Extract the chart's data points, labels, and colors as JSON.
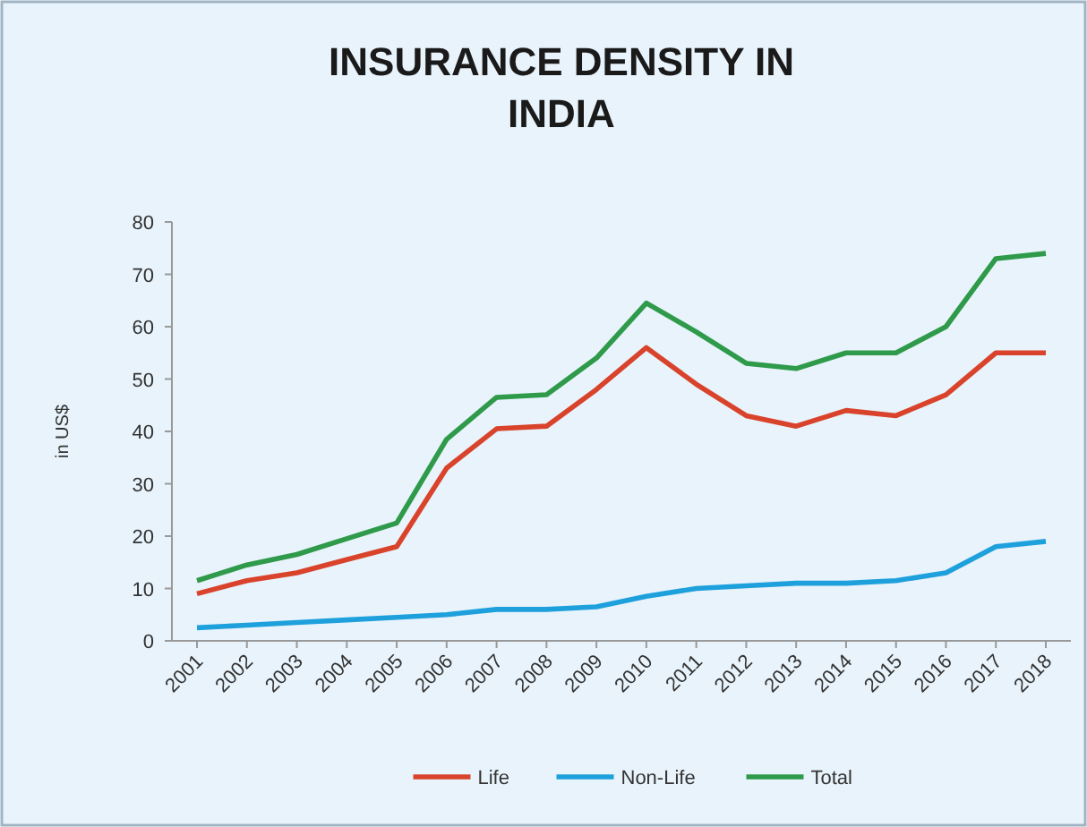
{
  "chart_data": {
    "type": "line",
    "title": "INSURANCE DENSITY IN INDIA",
    "ylabel": "in US$",
    "categories": [
      "2001",
      "2002",
      "2003",
      "2004",
      "2005",
      "2006",
      "2007",
      "2008",
      "2009",
      "2010",
      "2011",
      "2012",
      "2013",
      "2014",
      "2015",
      "2016",
      "2017",
      "2018"
    ],
    "series": [
      {
        "name": "Life",
        "color": "#d9432b",
        "values": [
          9,
          11.5,
          13,
          15.5,
          18,
          33,
          40.5,
          41,
          48,
          56,
          49,
          43,
          41,
          44,
          43,
          47,
          55,
          55
        ]
      },
      {
        "name": "Non-Life",
        "color": "#1ea0dc",
        "values": [
          2.5,
          3,
          3.5,
          4,
          4.5,
          5,
          6,
          6,
          6.5,
          8.5,
          10,
          10.5,
          11,
          11,
          11.5,
          13,
          18,
          19
        ]
      },
      {
        "name": "Total",
        "color": "#2e9a4a",
        "values": [
          11.5,
          14.5,
          16.5,
          19.5,
          22.5,
          38.5,
          46.5,
          47,
          54,
          64.5,
          59,
          53,
          52,
          55,
          55,
          60,
          73,
          74
        ]
      }
    ],
    "ylim": [
      0,
      80
    ],
    "yticks": [
      0,
      10,
      20,
      30,
      40,
      50,
      60,
      70,
      80
    ],
    "legend": "bottom",
    "grid": false,
    "marker": "none",
    "line_style": "solid"
  }
}
